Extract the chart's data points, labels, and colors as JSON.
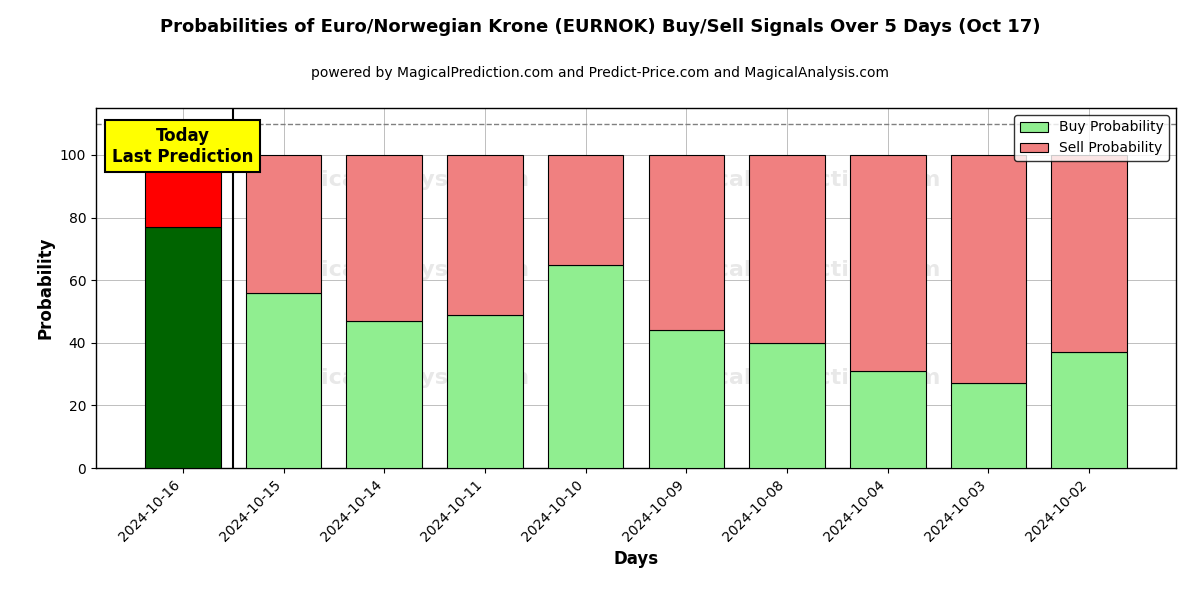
{
  "title": "Probabilities of Euro/Norwegian Krone (EURNOK) Buy/Sell Signals Over 5 Days (Oct 17)",
  "subtitle": "powered by MagicalPrediction.com and Predict-Price.com and MagicalAnalysis.com",
  "xlabel": "Days",
  "ylabel": "Probability",
  "dates": [
    "2024-10-16",
    "2024-10-15",
    "2024-10-14",
    "2024-10-11",
    "2024-10-10",
    "2024-10-09",
    "2024-10-08",
    "2024-10-04",
    "2024-10-03",
    "2024-10-02"
  ],
  "buy_values": [
    77,
    56,
    47,
    49,
    65,
    44,
    40,
    31,
    27,
    37
  ],
  "sell_values": [
    23,
    44,
    53,
    51,
    35,
    56,
    60,
    69,
    73,
    63
  ],
  "buy_colors_special": [
    "#006400",
    "#90EE90",
    "#90EE90",
    "#90EE90",
    "#90EE90",
    "#90EE90",
    "#90EE90",
    "#90EE90",
    "#90EE90",
    "#90EE90"
  ],
  "sell_colors_special": [
    "#FF0000",
    "#F08080",
    "#F08080",
    "#F08080",
    "#F08080",
    "#F08080",
    "#F08080",
    "#F08080",
    "#F08080",
    "#F08080"
  ],
  "buy_color_legend": "#90EE90",
  "sell_color_legend": "#F08080",
  "today_box_color": "#FFFF00",
  "dashed_line_y": 110,
  "ylim": [
    0,
    115
  ],
  "yticks": [
    0,
    20,
    40,
    60,
    80,
    100
  ],
  "bar_width": 0.75,
  "figsize": [
    12,
    6
  ],
  "dpi": 100
}
